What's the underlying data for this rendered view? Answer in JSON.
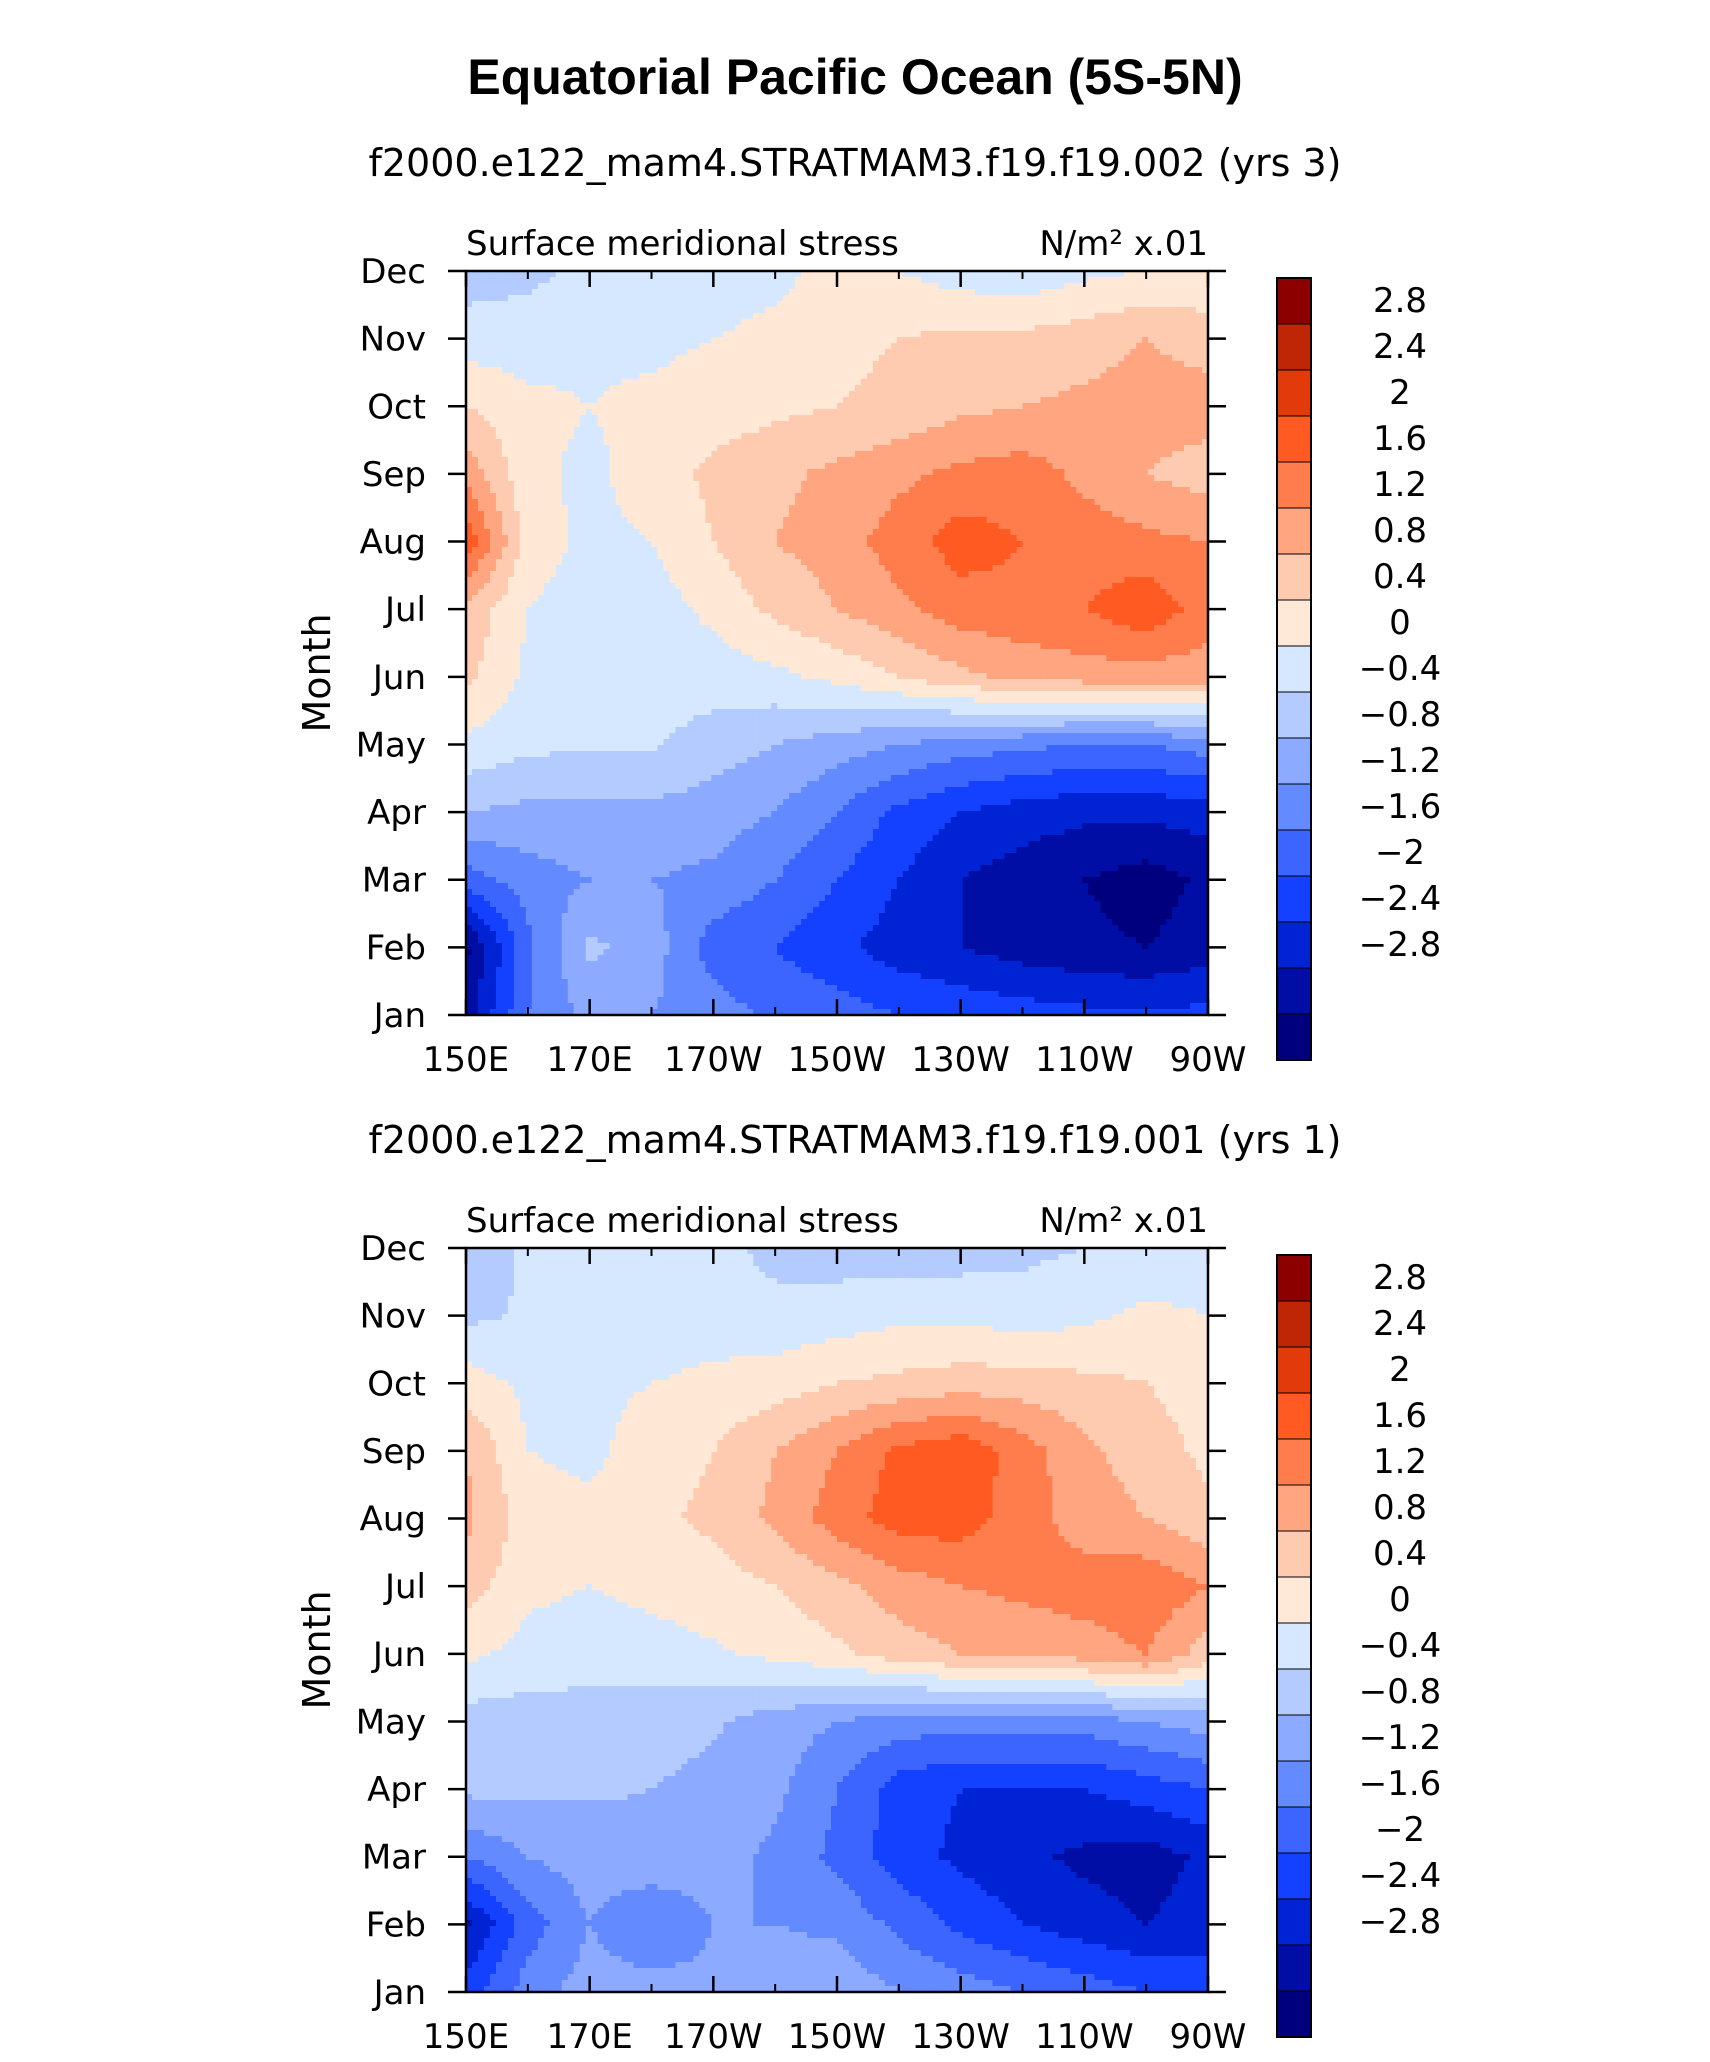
{
  "figure_title": "Equatorial Pacific Ocean (5S-5N)",
  "colors": {
    "levels": [
      "#00007f",
      "#000ea6",
      "#0024d4",
      "#1440ff",
      "#3c64ff",
      "#648aff",
      "#8caaff",
      "#b4cbff",
      "#d6e8ff",
      "#ffe9d6",
      "#ffcbb0",
      "#ffa57f",
      "#ff7d4c",
      "#ff5a22",
      "#e23a0a",
      "#bf2605",
      "#8c0000"
    ],
    "border": "#000000"
  },
  "chart_data": [
    {
      "type": "heatmap",
      "run_title": "f2000.e122_mam4.STRATMAM3.f19.f19.002 (yrs 3)",
      "left_label": "Surface meridional stress",
      "units_label": "N/m² x.01",
      "ylabel": "Month",
      "x_ticks": [
        "150E",
        "170E",
        "170W",
        "150W",
        "130W",
        "110W",
        "90W"
      ],
      "y_ticks": [
        "Jan",
        "Feb",
        "Mar",
        "Apr",
        "May",
        "Jun",
        "Jul",
        "Aug",
        "Sep",
        "Oct",
        "Nov",
        "Dec"
      ],
      "colorbar_labels": [
        "2.8",
        "2.4",
        "2",
        "1.6",
        "1.2",
        "0.8",
        "0.4",
        "0",
        "−0.4",
        "−0.8",
        "−1.2",
        "−1.6",
        "−2",
        "−2.4",
        "−2.8"
      ],
      "contour_levels": [
        -3.0,
        -2.8,
        -2.4,
        -2.0,
        -1.6,
        -1.2,
        -0.8,
        -0.4,
        0,
        0.4,
        0.8,
        1.2,
        1.6,
        2.0,
        2.4,
        2.8
      ],
      "grid_lon": [
        150,
        160,
        170,
        180,
        190,
        200,
        210,
        220,
        230,
        240,
        250,
        260,
        270
      ],
      "values": [
        [
          -2.6,
          -1.2,
          -0.7,
          -0.8,
          -1.0,
          -1.3,
          -1.4,
          -1.6,
          -1.7,
          -1.8,
          -1.9,
          -1.9,
          -1.9
        ],
        [
          -2.9,
          -1.3,
          -0.3,
          -0.6,
          -1.4,
          -1.6,
          -1.9,
          -2.2,
          -2.4,
          -2.6,
          -2.7,
          -2.8,
          -2.6
        ],
        [
          -1.4,
          -1.0,
          -0.8,
          -0.8,
          -0.9,
          -1.2,
          -1.6,
          -2.0,
          -2.4,
          -2.6,
          -2.8,
          -3.0,
          -2.7
        ],
        [
          -0.4,
          -0.5,
          -0.5,
          -0.5,
          -0.6,
          -0.8,
          -1.2,
          -1.7,
          -2.0,
          -2.2,
          -2.3,
          -2.3,
          -2.2
        ],
        [
          0.3,
          0.1,
          0.05,
          0.05,
          -0.2,
          -0.4,
          -0.6,
          -0.8,
          -1.0,
          -1.1,
          -1.2,
          -1.2,
          -1.0
        ],
        [
          0.9,
          0.3,
          0.2,
          0.2,
          0.2,
          0.3,
          0.5,
          0.8,
          1.1,
          1.3,
          1.4,
          1.4,
          1.4
        ],
        [
          1.1,
          0.4,
          0.2,
          0.2,
          0.5,
          0.9,
          1.2,
          1.5,
          1.8,
          1.9,
          2.0,
          2.3,
          1.8
        ],
        [
          2.3,
          0.6,
          0.3,
          0.4,
          0.8,
          1.2,
          1.4,
          1.8,
          2.2,
          2.0,
          1.8,
          1.7,
          1.6
        ],
        [
          1.5,
          0.5,
          0.3,
          0.6,
          0.9,
          1.1,
          1.3,
          1.5,
          1.7,
          1.8,
          1.5,
          1.2,
          1.0
        ],
        [
          0.8,
          0.5,
          0.4,
          0.5,
          0.6,
          0.7,
          0.8,
          0.9,
          1.1,
          1.2,
          1.3,
          1.4,
          1.4
        ],
        [
          0.2,
          0.2,
          0.3,
          0.3,
          0.4,
          0.5,
          0.7,
          0.8,
          0.9,
          0.9,
          1.0,
          1.2,
          1.0
        ],
        [
          -0.2,
          -0.1,
          0.1,
          0.1,
          0.2,
          0.3,
          0.5,
          0.4,
          0.2,
          0.1,
          0.3,
          0.4,
          0.5
        ]
      ]
    },
    {
      "type": "heatmap",
      "run_title": "f2000.e122_mam4.STRATMAM3.f19.f19.001 (yrs 1)",
      "left_label": "Surface meridional stress",
      "units_label": "N/m² x.01",
      "ylabel": "Month",
      "x_ticks": [
        "150E",
        "170E",
        "170W",
        "150W",
        "130W",
        "110W",
        "90W"
      ],
      "y_ticks": [
        "Jan",
        "Feb",
        "Mar",
        "Apr",
        "May",
        "Jun",
        "Jul",
        "Aug",
        "Sep",
        "Oct",
        "Nov",
        "Dec"
      ],
      "colorbar_labels": [
        "2.8",
        "2.4",
        "2",
        "1.6",
        "1.2",
        "0.8",
        "0.4",
        "0",
        "−0.4",
        "−0.8",
        "−1.2",
        "−1.6",
        "−2",
        "−2.4",
        "−2.8"
      ],
      "contour_levels": [
        -3.0,
        -2.8,
        -2.4,
        -2.0,
        -1.6,
        -1.2,
        -0.8,
        -0.4,
        0,
        0.4,
        0.8,
        1.2,
        1.6,
        2.0,
        2.4,
        2.8
      ],
      "grid_lon": [
        150,
        160,
        170,
        180,
        190,
        200,
        210,
        220,
        230,
        240,
        250,
        260,
        270
      ],
      "values": [
        [
          -1.8,
          -1.0,
          -0.6,
          -0.6,
          -0.7,
          -0.5,
          -0.5,
          -0.8,
          -1.0,
          -1.2,
          -1.4,
          -1.6,
          -1.8
        ],
        [
          -2.5,
          -1.4,
          -0.8,
          -1.2,
          -0.8,
          -0.8,
          -0.9,
          -1.3,
          -1.7,
          -2.0,
          -2.2,
          -2.4,
          -2.2
        ],
        [
          -1.2,
          -0.8,
          -0.6,
          -0.5,
          -0.6,
          -0.9,
          -1.3,
          -1.8,
          -2.1,
          -2.3,
          -2.5,
          -2.6,
          -2.3
        ],
        [
          -0.3,
          -0.3,
          -0.35,
          -0.4,
          -0.5,
          -0.7,
          -1.2,
          -1.8,
          -2.0,
          -2.0,
          -2.0,
          -1.8,
          -1.6
        ],
        [
          -0.2,
          -0.2,
          -0.2,
          -0.25,
          -0.35,
          -0.6,
          -0.8,
          -1.0,
          -1.0,
          -1.0,
          -1.0,
          -0.8,
          -0.6
        ],
        [
          0.5,
          0.25,
          0.2,
          0.25,
          0.35,
          0.5,
          0.7,
          1.0,
          1.2,
          1.3,
          1.4,
          1.6,
          1.0
        ],
        [
          1.0,
          0.5,
          0.4,
          0.5,
          0.6,
          0.8,
          1.1,
          1.4,
          1.6,
          1.7,
          1.8,
          1.9,
          1.6
        ],
        [
          1.3,
          0.6,
          0.5,
          0.7,
          0.9,
          1.3,
          1.8,
          2.2,
          2.2,
          1.8,
          1.4,
          1.2,
          0.9
        ],
        [
          1.2,
          0.4,
          0.3,
          0.6,
          0.8,
          1.2,
          1.6,
          2.1,
          2.3,
          1.8,
          1.3,
          1.0,
          0.7
        ],
        [
          0.6,
          0.3,
          0.3,
          0.4,
          0.5,
          0.6,
          0.8,
          0.9,
          1.0,
          1.0,
          0.9,
          0.8,
          0.6
        ],
        [
          -0.1,
          0.05,
          0.1,
          0.15,
          0.2,
          0.1,
          0.2,
          0.3,
          0.3,
          0.2,
          0.3,
          0.5,
          0.4
        ],
        [
          -0.2,
          0.05,
          0.05,
          0.1,
          0.1,
          -0.1,
          -0.2,
          -0.2,
          -0.2,
          -0.1,
          0.0,
          0.1,
          0.1
        ]
      ]
    }
  ]
}
